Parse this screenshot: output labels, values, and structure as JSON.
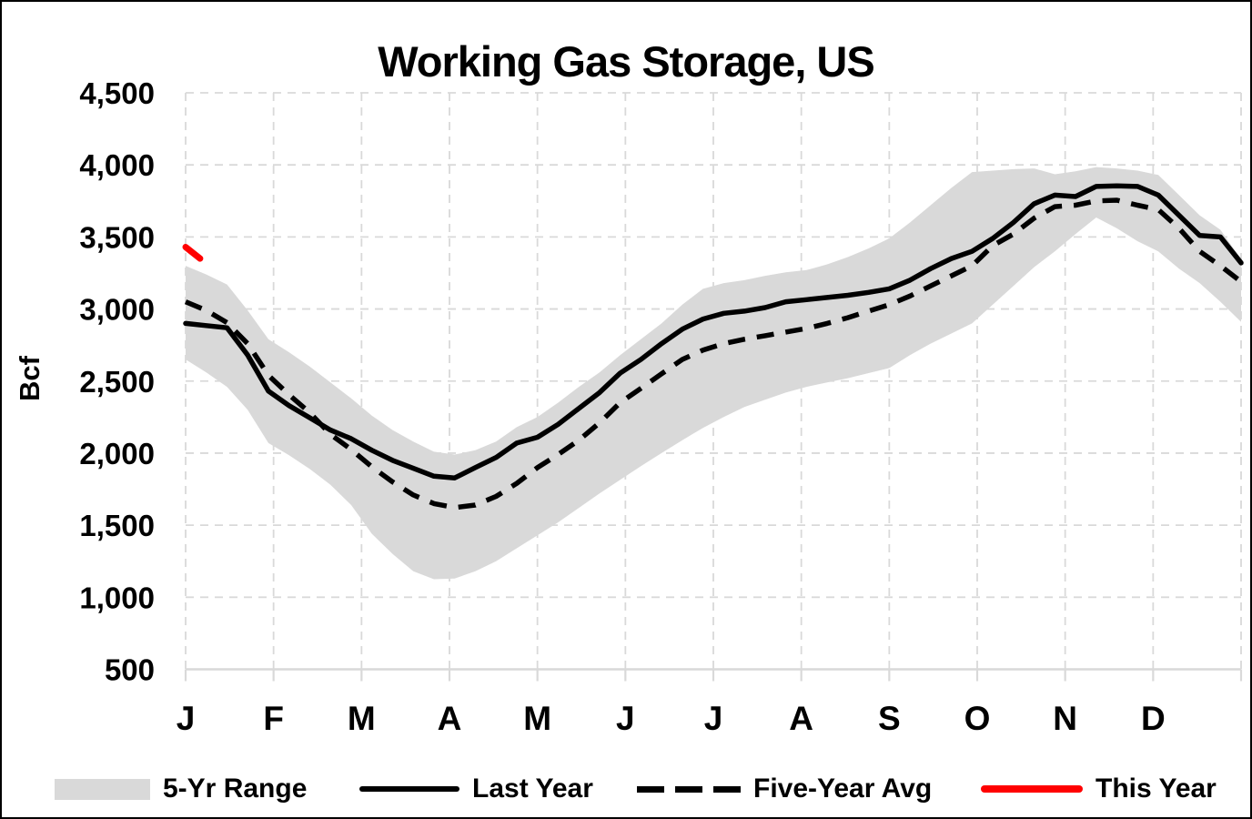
{
  "title": "Working Gas Storage, US",
  "y_axis": {
    "label": "Bcf",
    "tick_labels": [
      "500",
      "1,000",
      "1,500",
      "2,000",
      "2,500",
      "3,000",
      "3,500",
      "4,000",
      "4,500"
    ],
    "tick_values": [
      500,
      1000,
      1500,
      2000,
      2500,
      3000,
      3500,
      4000,
      4500
    ]
  },
  "x_axis": {
    "month_labels": [
      "J",
      "F",
      "M",
      "A",
      "M",
      "J",
      "J",
      "A",
      "S",
      "O",
      "N",
      "D"
    ]
  },
  "legend": {
    "items": [
      {
        "label": "5-Yr Range",
        "swatch": "band",
        "color": "#d9d9d9"
      },
      {
        "label": "Last Year",
        "swatch": "solid-line",
        "color": "#000000"
      },
      {
        "label": "Five-Year Avg",
        "swatch": "dashed-line",
        "color": "#000000"
      },
      {
        "label": "This Year",
        "swatch": "solid-line",
        "color": "#ff0000"
      }
    ]
  },
  "chart_data": {
    "type": "line",
    "title": "Working Gas Storage, US",
    "ylabel": "Bcf",
    "ylim": [
      500,
      4500
    ],
    "grid": "dashed-gray",
    "legend_position": "bottom",
    "x_unit": "weekly, Jan through Dec (52 points)",
    "month_labels": [
      "J",
      "F",
      "M",
      "A",
      "M",
      "J",
      "J",
      "A",
      "S",
      "O",
      "N",
      "D"
    ],
    "colors": {
      "band": "#d9d9d9",
      "line": "#000000",
      "this_year": "#ff0000",
      "grid": "#d9d9d9"
    },
    "series": [
      {
        "name": "5-Yr Range",
        "type": "band",
        "color": "#d9d9d9",
        "top": [
          3300,
          3240,
          3170,
          2990,
          2790,
          2700,
          2600,
          2490,
          2380,
          2260,
          2160,
          2080,
          2010,
          1990,
          2020,
          2080,
          2180,
          2250,
          2350,
          2460,
          2560,
          2680,
          2790,
          2900,
          3030,
          3140,
          3180,
          3200,
          3230,
          3255,
          3270,
          3310,
          3360,
          3420,
          3490,
          3600,
          3720,
          3840,
          3950,
          3960,
          3970,
          3975,
          3935,
          3955,
          3985,
          3975,
          3960,
          3930,
          3790,
          3650,
          3550,
          3345
        ],
        "bottom": [
          2650,
          2560,
          2460,
          2300,
          2070,
          1985,
          1890,
          1780,
          1640,
          1440,
          1300,
          1180,
          1125,
          1130,
          1180,
          1250,
          1340,
          1430,
          1520,
          1620,
          1720,
          1815,
          1910,
          2000,
          2090,
          2175,
          2250,
          2320,
          2370,
          2420,
          2460,
          2490,
          2520,
          2555,
          2590,
          2680,
          2760,
          2830,
          2900,
          3030,
          3160,
          3290,
          3400,
          3520,
          3635,
          3560,
          3470,
          3400,
          3280,
          3180,
          3050,
          2910
        ]
      },
      {
        "name": "Last Year",
        "type": "line",
        "style": "solid",
        "color": "#000000",
        "values": [
          2900,
          2885,
          2870,
          2680,
          2430,
          2330,
          2245,
          2160,
          2100,
          2020,
          1950,
          1895,
          1840,
          1828,
          1900,
          1970,
          2070,
          2110,
          2200,
          2310,
          2420,
          2555,
          2650,
          2760,
          2860,
          2930,
          2970,
          2985,
          3010,
          3050,
          3065,
          3080,
          3095,
          3115,
          3140,
          3200,
          3280,
          3350,
          3400,
          3490,
          3600,
          3730,
          3790,
          3780,
          3850,
          3855,
          3850,
          3790,
          3650,
          3510,
          3500,
          3320
        ]
      },
      {
        "name": "Five-Year Avg",
        "type": "line",
        "style": "dashed",
        "color": "#000000",
        "values": [
          3050,
          2990,
          2905,
          2760,
          2540,
          2405,
          2280,
          2130,
          2025,
          1905,
          1800,
          1710,
          1650,
          1622,
          1640,
          1700,
          1790,
          1900,
          1990,
          2090,
          2210,
          2350,
          2450,
          2550,
          2650,
          2715,
          2760,
          2790,
          2815,
          2840,
          2865,
          2900,
          2940,
          2985,
          3030,
          3090,
          3160,
          3230,
          3300,
          3440,
          3520,
          3630,
          3710,
          3720,
          3750,
          3755,
          3720,
          3690,
          3560,
          3400,
          3300,
          3190
        ]
      },
      {
        "name": "This Year",
        "type": "line",
        "style": "solid",
        "color": "#ff0000",
        "x_weeks": [
          0,
          0.7
        ],
        "values": [
          3430,
          3350
        ]
      }
    ]
  }
}
